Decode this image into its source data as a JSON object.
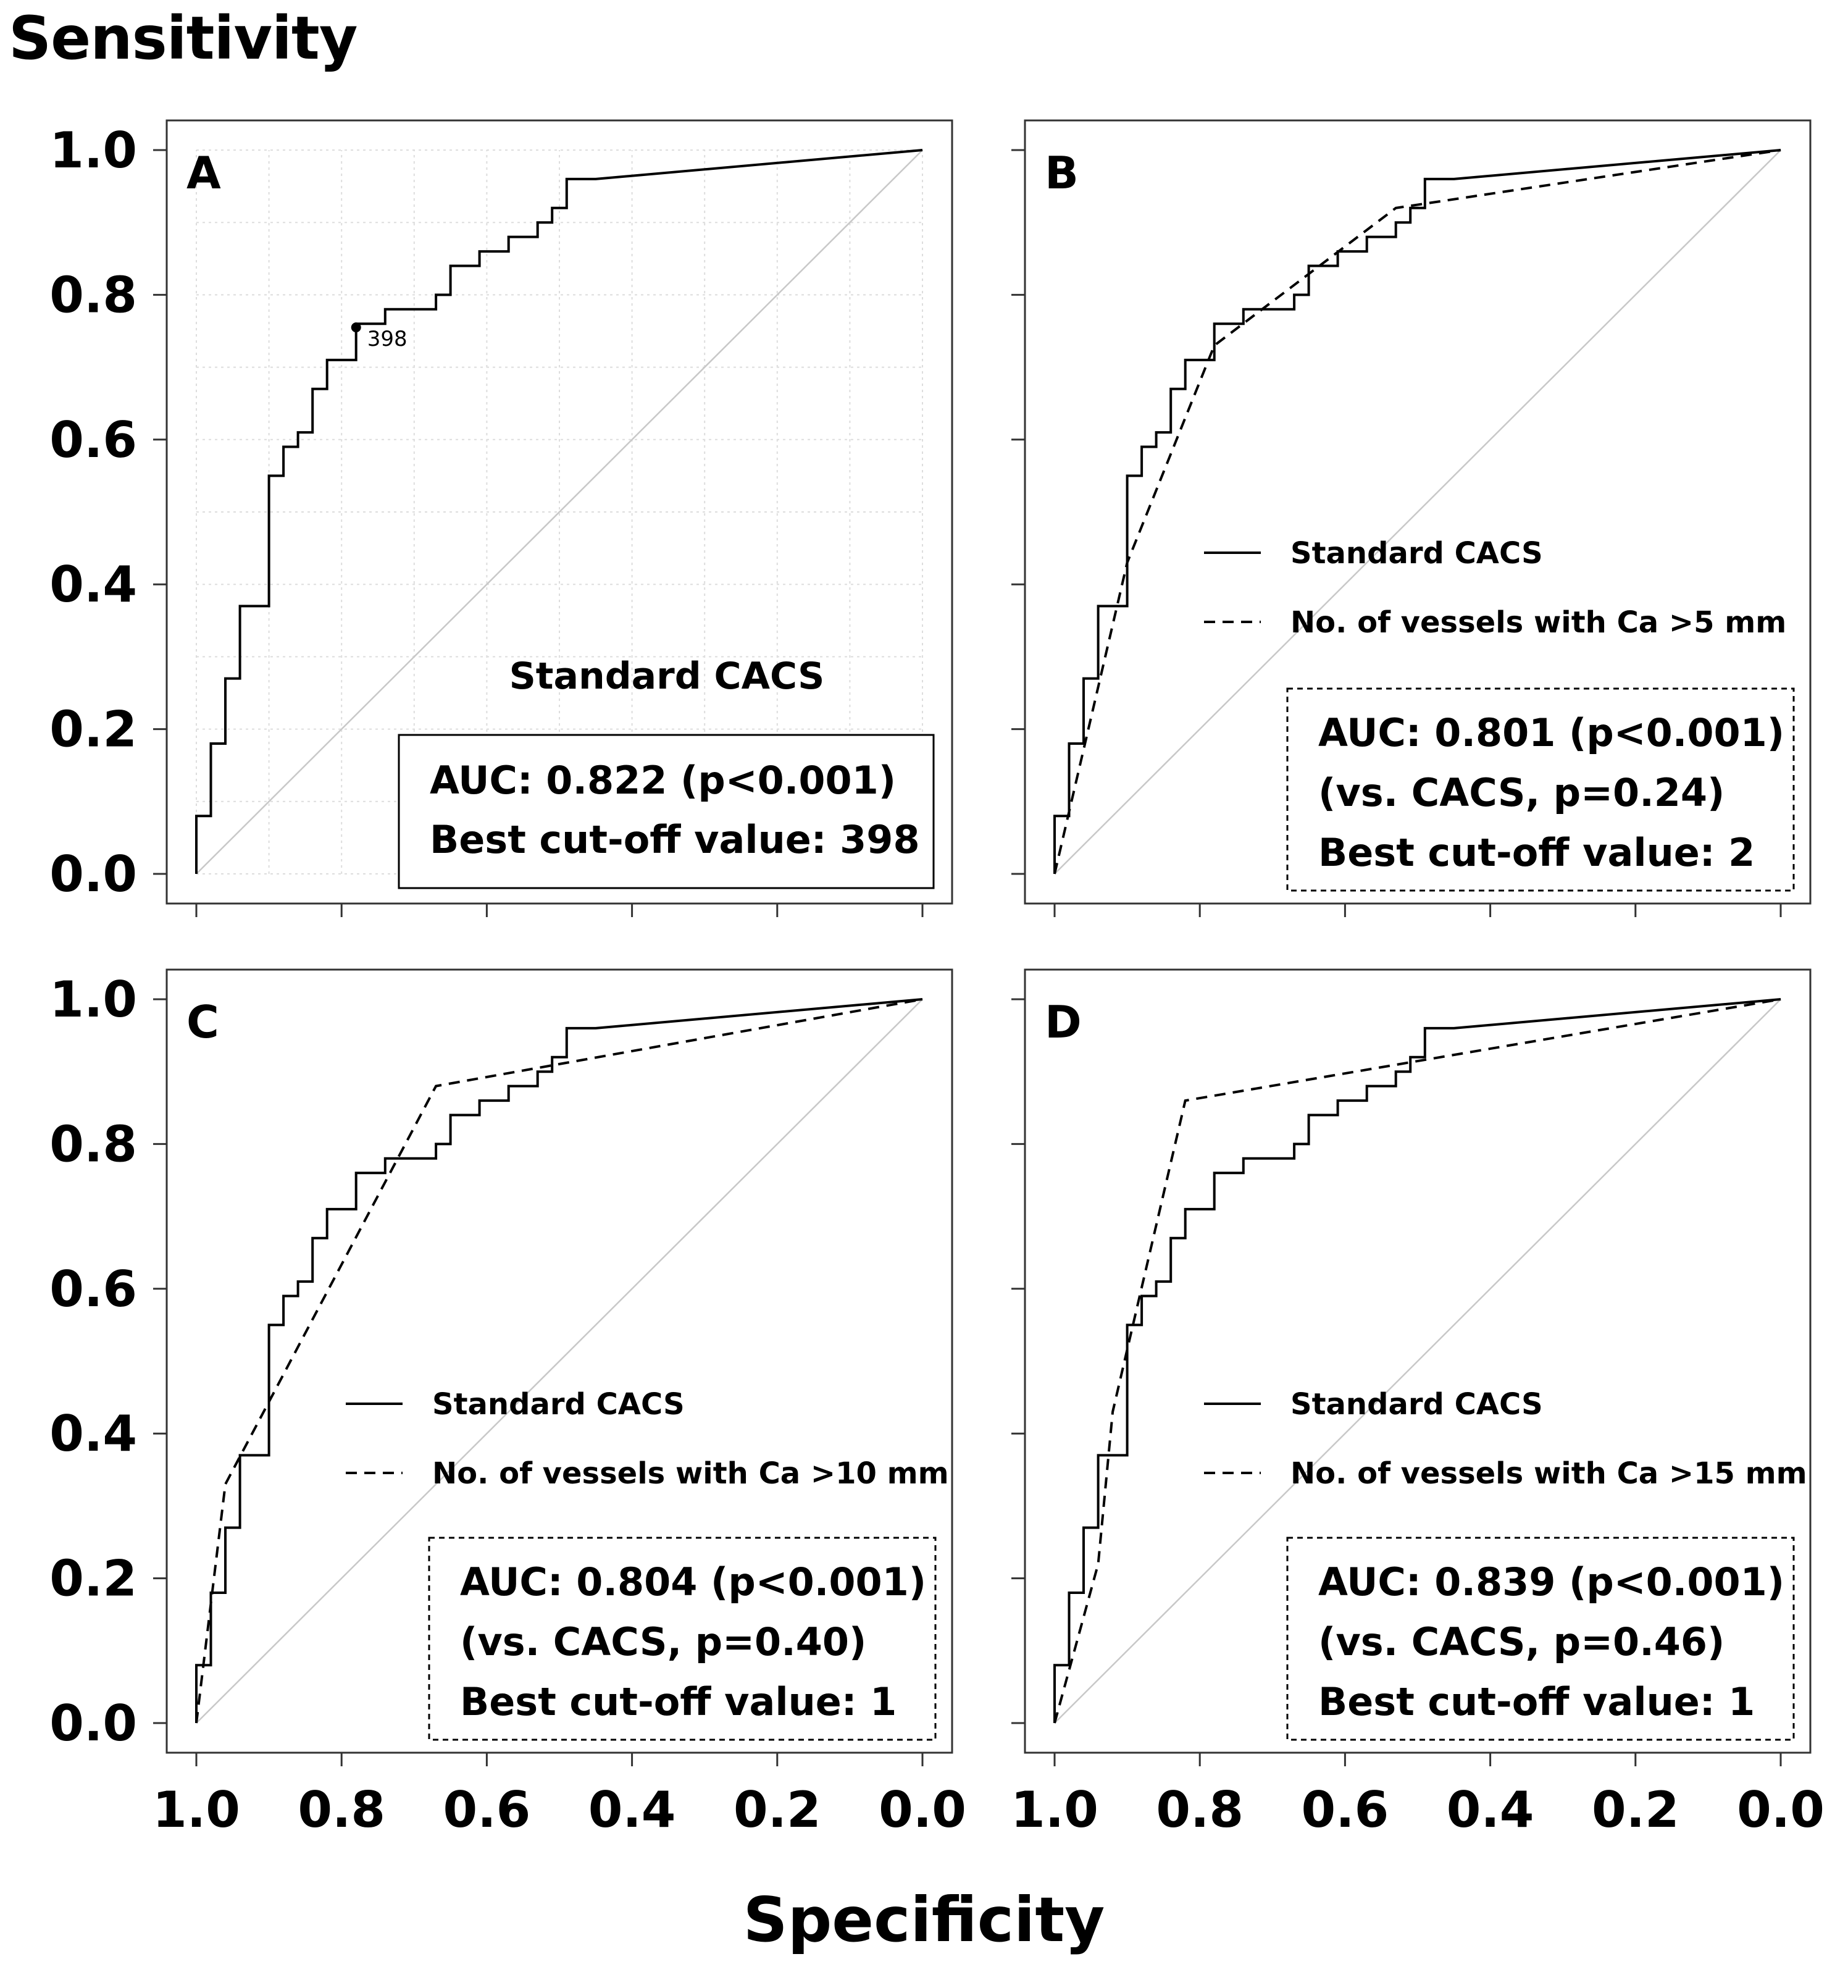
{
  "figure": {
    "y_axis_label": "Sensitivity",
    "x_axis_label": "Specificity"
  },
  "chart_data": [
    {
      "panel_letter": "A",
      "type": "line",
      "xlabel": "Specificity",
      "ylabel": "Sensitivity",
      "xlim": [
        1.0,
        0.0
      ],
      "ylim": [
        0.0,
        1.0
      ],
      "x_reversed": true,
      "xticks": [
        "1.0",
        "0.8",
        "0.6",
        "0.4",
        "0.2",
        "0.0"
      ],
      "yticks": [
        "1.0",
        "0.8",
        "0.6",
        "0.4",
        "0.2",
        "0.0"
      ],
      "grid": true,
      "reference_line": "diagonal",
      "series": [
        {
          "name": "",
          "style": "solid",
          "x": [
            1.0,
            1.0,
            0.98,
            0.98,
            0.96,
            0.96,
            0.94,
            0.94,
            0.9,
            0.9,
            0.88,
            0.88,
            0.86,
            0.86,
            0.84,
            0.84,
            0.82,
            0.82,
            0.8,
            0.8,
            0.78,
            0.78,
            0.74,
            0.74,
            0.67,
            0.67,
            0.65,
            0.65,
            0.61,
            0.61,
            0.57,
            0.57,
            0.53,
            0.53,
            0.51,
            0.51,
            0.49,
            0.49,
            0.45,
            0.0
          ],
          "y": [
            0.0,
            0.08,
            0.08,
            0.18,
            0.18,
            0.27,
            0.27,
            0.37,
            0.37,
            0.55,
            0.55,
            0.59,
            0.59,
            0.61,
            0.61,
            0.67,
            0.67,
            0.71,
            0.71,
            0.71,
            0.71,
            0.76,
            0.76,
            0.78,
            0.78,
            0.8,
            0.8,
            0.84,
            0.84,
            0.86,
            0.86,
            0.88,
            0.88,
            0.9,
            0.9,
            0.92,
            0.92,
            0.96,
            0.96,
            1.0
          ]
        }
      ],
      "cutoff_point": {
        "x": 0.78,
        "y": 0.755,
        "label": "398"
      },
      "annotation_title": "Standard CACS",
      "box_style": "solid",
      "box_lines": [
        "AUC: 0.822 (p<0.001)",
        "Best cut-off value: 398"
      ]
    },
    {
      "panel_letter": "B",
      "type": "line",
      "xlim": [
        1.0,
        0.0
      ],
      "ylim": [
        0.0,
        1.0
      ],
      "x_reversed": true,
      "xticks": [
        "1.0",
        "0.8",
        "0.6",
        "0.4",
        "0.2",
        "0.0"
      ],
      "yticks": [
        "1.0",
        "0.8",
        "0.6",
        "0.4",
        "0.2",
        "0.0"
      ],
      "grid": false,
      "reference_line": "diagonal",
      "legend_position": "center-right",
      "series": [
        {
          "name": "Standard CACS",
          "style": "solid",
          "x": [
            1.0,
            1.0,
            0.98,
            0.98,
            0.96,
            0.96,
            0.94,
            0.94,
            0.9,
            0.9,
            0.88,
            0.88,
            0.86,
            0.86,
            0.84,
            0.84,
            0.82,
            0.82,
            0.8,
            0.8,
            0.78,
            0.78,
            0.74,
            0.74,
            0.67,
            0.67,
            0.65,
            0.65,
            0.61,
            0.61,
            0.57,
            0.57,
            0.53,
            0.53,
            0.51,
            0.51,
            0.49,
            0.49,
            0.45,
            0.0
          ],
          "y": [
            0.0,
            0.08,
            0.08,
            0.18,
            0.18,
            0.27,
            0.27,
            0.37,
            0.37,
            0.55,
            0.55,
            0.59,
            0.59,
            0.61,
            0.61,
            0.67,
            0.67,
            0.71,
            0.71,
            0.71,
            0.71,
            0.76,
            0.76,
            0.78,
            0.78,
            0.8,
            0.8,
            0.84,
            0.84,
            0.86,
            0.86,
            0.88,
            0.88,
            0.9,
            0.9,
            0.92,
            0.92,
            0.96,
            0.96,
            1.0
          ]
        },
        {
          "name": "No. of vessels with Ca >5 mm",
          "style": "dashed",
          "x": [
            1.0,
            0.9,
            0.78,
            0.53,
            0.0
          ],
          "y": [
            0.0,
            0.43,
            0.73,
            0.92,
            1.0
          ]
        }
      ],
      "box_style": "dashed",
      "box_lines": [
        "AUC: 0.801 (p<0.001)",
        "(vs. CACS, p=0.24)",
        "Best cut-off value: 2"
      ]
    },
    {
      "panel_letter": "C",
      "type": "line",
      "xlim": [
        1.0,
        0.0
      ],
      "ylim": [
        0.0,
        1.0
      ],
      "x_reversed": true,
      "xticks": [
        "1.0",
        "0.8",
        "0.6",
        "0.4",
        "0.2",
        "0.0"
      ],
      "yticks": [
        "1.0",
        "0.8",
        "0.6",
        "0.4",
        "0.2",
        "0.0"
      ],
      "grid": false,
      "reference_line": "diagonal",
      "legend_position": "center-right",
      "series": [
        {
          "name": "Standard CACS",
          "style": "solid",
          "x": [
            1.0,
            1.0,
            0.98,
            0.98,
            0.96,
            0.96,
            0.94,
            0.94,
            0.9,
            0.9,
            0.88,
            0.88,
            0.86,
            0.86,
            0.84,
            0.84,
            0.82,
            0.82,
            0.8,
            0.8,
            0.78,
            0.78,
            0.74,
            0.74,
            0.67,
            0.67,
            0.65,
            0.65,
            0.61,
            0.61,
            0.57,
            0.57,
            0.53,
            0.53,
            0.51,
            0.51,
            0.49,
            0.49,
            0.45,
            0.0
          ],
          "y": [
            0.0,
            0.08,
            0.08,
            0.18,
            0.18,
            0.27,
            0.27,
            0.37,
            0.37,
            0.55,
            0.55,
            0.59,
            0.59,
            0.61,
            0.61,
            0.67,
            0.67,
            0.71,
            0.71,
            0.71,
            0.71,
            0.76,
            0.76,
            0.78,
            0.78,
            0.8,
            0.8,
            0.84,
            0.84,
            0.86,
            0.86,
            0.88,
            0.88,
            0.9,
            0.9,
            0.92,
            0.92,
            0.96,
            0.96,
            1.0
          ]
        },
        {
          "name": "No. of vessels with Ca >10 mm",
          "style": "dashed",
          "x": [
            1.0,
            0.96,
            0.67,
            0.0
          ],
          "y": [
            0.0,
            0.33,
            0.88,
            1.0
          ]
        }
      ],
      "box_style": "dashed",
      "box_lines": [
        "AUC: 0.804 (p<0.001)",
        "(vs. CACS, p=0.40)",
        "Best cut-off value: 1"
      ]
    },
    {
      "panel_letter": "D",
      "type": "line",
      "xlim": [
        1.0,
        0.0
      ],
      "ylim": [
        0.0,
        1.0
      ],
      "x_reversed": true,
      "xticks": [
        "1.0",
        "0.8",
        "0.6",
        "0.4",
        "0.2",
        "0.0"
      ],
      "yticks": [
        "1.0",
        "0.8",
        "0.6",
        "0.4",
        "0.2",
        "0.0"
      ],
      "grid": false,
      "reference_line": "diagonal",
      "legend_position": "center-right",
      "series": [
        {
          "name": "Standard CACS",
          "style": "solid",
          "x": [
            1.0,
            1.0,
            0.98,
            0.98,
            0.96,
            0.96,
            0.94,
            0.94,
            0.9,
            0.9,
            0.88,
            0.88,
            0.86,
            0.86,
            0.84,
            0.84,
            0.82,
            0.82,
            0.8,
            0.8,
            0.78,
            0.78,
            0.74,
            0.74,
            0.67,
            0.67,
            0.65,
            0.65,
            0.61,
            0.61,
            0.57,
            0.57,
            0.53,
            0.53,
            0.51,
            0.51,
            0.49,
            0.49,
            0.45,
            0.0
          ],
          "y": [
            0.0,
            0.08,
            0.08,
            0.18,
            0.18,
            0.27,
            0.27,
            0.37,
            0.37,
            0.55,
            0.55,
            0.59,
            0.59,
            0.61,
            0.61,
            0.67,
            0.67,
            0.71,
            0.71,
            0.71,
            0.71,
            0.76,
            0.76,
            0.78,
            0.78,
            0.8,
            0.8,
            0.84,
            0.84,
            0.86,
            0.86,
            0.88,
            0.88,
            0.9,
            0.9,
            0.92,
            0.92,
            0.96,
            0.96,
            1.0
          ]
        },
        {
          "name": "No. of vessels with Ca >15 mm",
          "style": "dashed",
          "x": [
            1.0,
            0.94,
            0.92,
            0.82,
            0.0
          ],
          "y": [
            0.0,
            0.22,
            0.43,
            0.86,
            1.0
          ]
        }
      ],
      "box_style": "dashed",
      "box_lines": [
        "AUC: 0.839 (p<0.001)",
        "(vs. CACS, p=0.46)",
        "Best cut-off value: 1"
      ]
    }
  ]
}
